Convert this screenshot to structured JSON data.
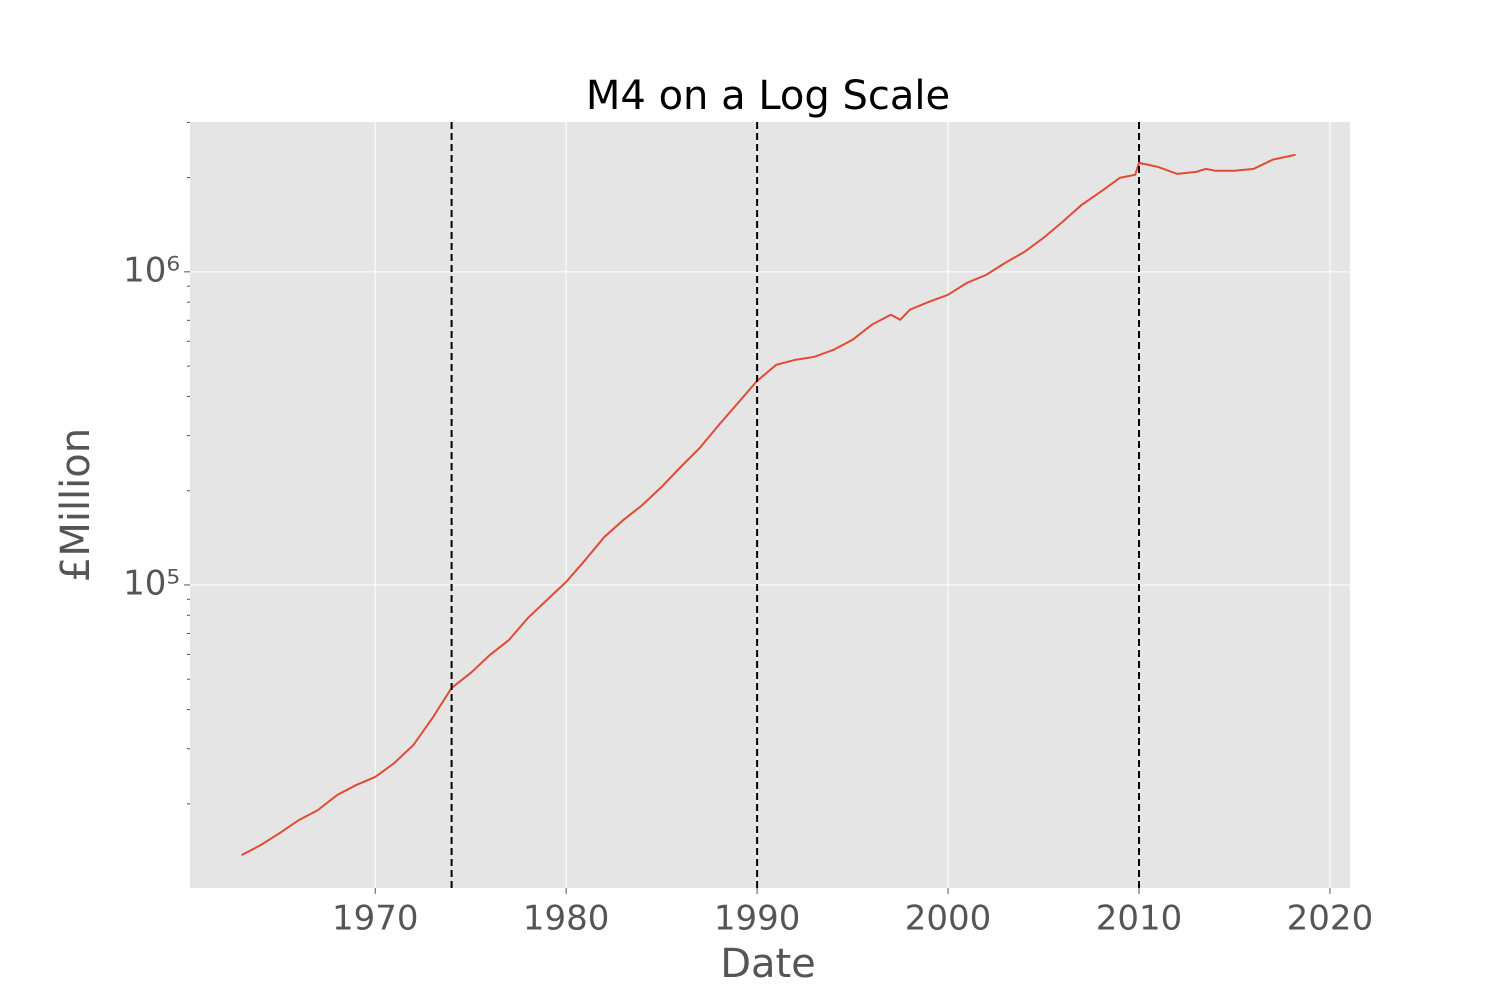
{
  "chart_data": {
    "type": "line",
    "title": "M4 on a Log Scale",
    "x_label": "Date",
    "y_label": "£Million",
    "x": [
      1963,
      1964,
      1965,
      1966,
      1967,
      1968,
      1969,
      1970,
      1971,
      1972,
      1973,
      1974,
      1975,
      1976,
      1977,
      1978,
      1979,
      1980,
      1981,
      1982,
      1983,
      1984,
      1985,
      1986,
      1987,
      1988,
      1989,
      1990,
      1991,
      1992,
      1993,
      1994,
      1995,
      1996,
      1997,
      1997.5,
      1998,
      1999,
      2000,
      2001,
      2002,
      2003,
      2004,
      2005,
      2006,
      2007,
      2008,
      2009,
      2009.8,
      2010,
      2011,
      2012,
      2013,
      2013.5,
      2014,
      2015,
      2016,
      2017,
      2018.2
    ],
    "series": [
      {
        "color": "#e24a33",
        "values": [
          13720,
          14760,
          16130,
          17750,
          19100,
          21330,
          22960,
          24370,
          27000,
          30820,
          37600,
          46900,
          52360,
          59730,
          66700,
          78500,
          89600,
          102300,
          120200,
          142300,
          161300,
          180200,
          205700,
          238300,
          274100,
          324600,
          381300,
          448500,
          504800,
          523600,
          535300,
          563500,
          606700,
          677500,
          729600,
          703100,
          757000,
          802000,
          845000,
          923000,
          977900,
          1069000,
          1158000,
          1284000,
          1445000,
          1637000,
          1803000,
          1997000,
          2042000,
          2229000,
          2163000,
          2055000,
          2086000,
          2132000,
          2103000,
          2103000,
          2132000,
          2281000,
          2366000
        ]
      }
    ],
    "vlines": [
      1974,
      1990,
      2010
    ],
    "xlim": [
      1960.3,
      2021.05
    ],
    "xticks": [
      1970,
      1980,
      1990,
      2000,
      2010,
      2020
    ],
    "ylim": [
      10770,
      3010000
    ],
    "log_y": true,
    "yticks": [
      {
        "value": 100000,
        "label": "10⁵"
      },
      {
        "value": 1000000,
        "label": "10⁶"
      }
    ],
    "yminor_ticks": [
      20000,
      30000,
      40000,
      50000,
      60000,
      70000,
      80000,
      90000,
      200000,
      300000,
      400000,
      500000,
      600000,
      700000,
      800000,
      900000,
      2000000,
      3000000
    ],
    "grid": true
  }
}
